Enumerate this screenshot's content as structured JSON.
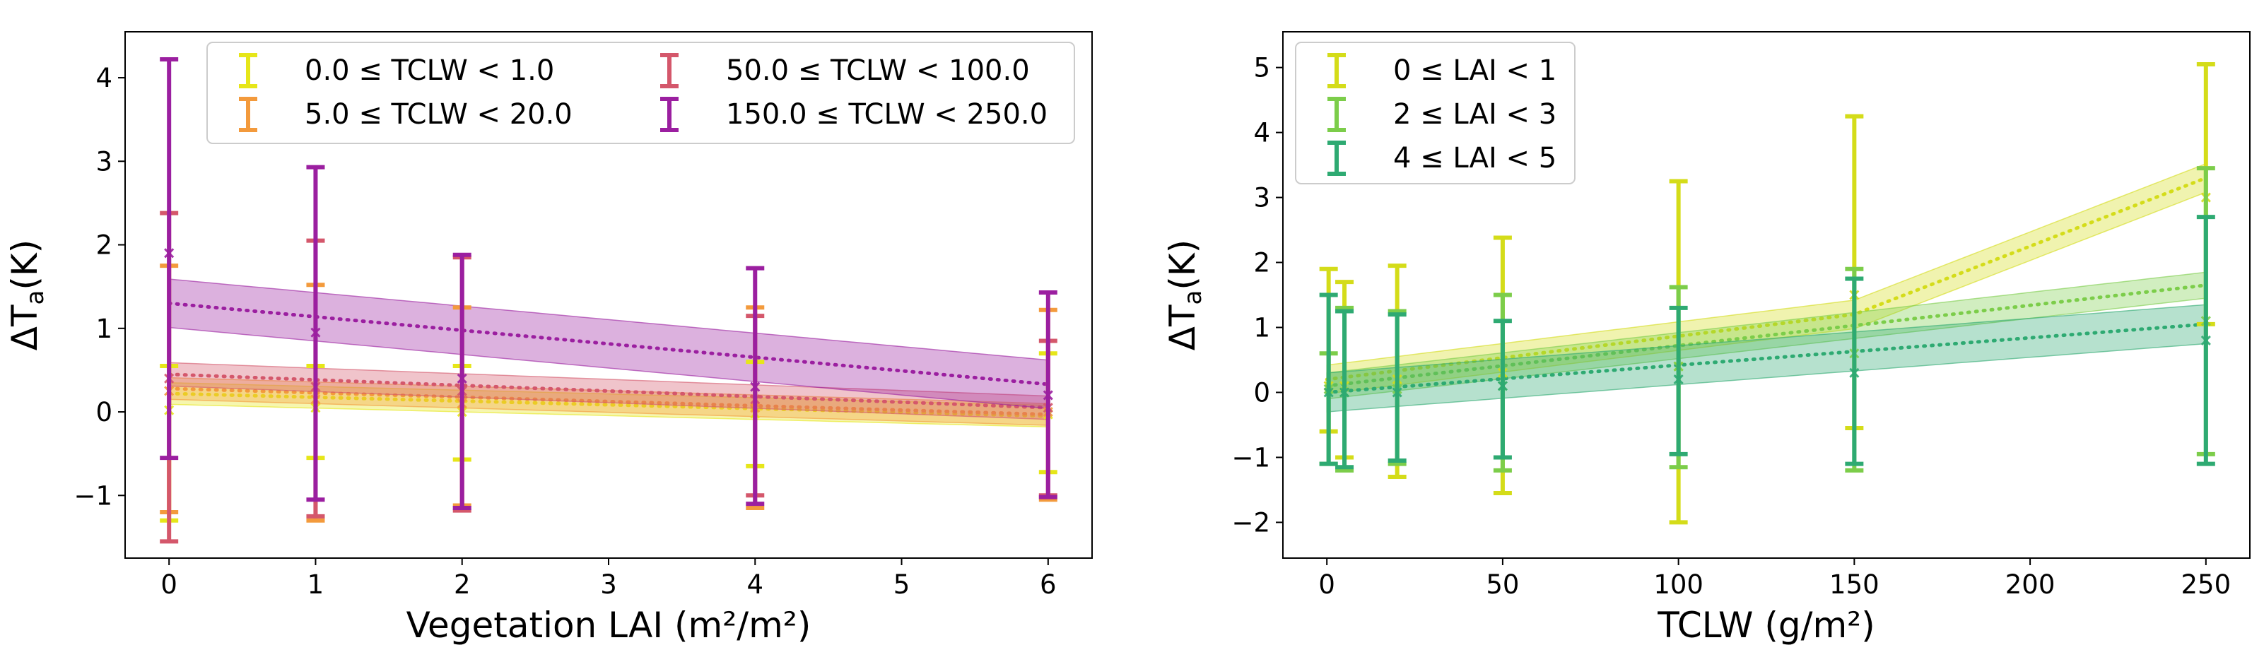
{
  "chart_data": [
    {
      "type": "line",
      "xlabel": "Vegetation LAI (m²/m²)",
      "ylabel_main": "ΔT",
      "ylabel_sub": "a",
      "ylabel_unit": "(K)",
      "xlim": [
        -0.3,
        6.3
      ],
      "ylim": [
        -1.75,
        4.55
      ],
      "xticks": [
        0,
        1,
        2,
        3,
        4,
        5,
        6
      ],
      "xtick_labels": [
        "0",
        "1",
        "2",
        "3",
        "4",
        "5",
        "6"
      ],
      "yticks": [
        -1,
        0,
        1,
        2,
        3,
        4
      ],
      "ytick_labels": [
        "−1",
        "0",
        "1",
        "2",
        "3",
        "4"
      ],
      "legend_position": "top, two columns",
      "series": [
        {
          "name": "0.0 ≤ TCLW < 1.0",
          "color": "#e6e619",
          "fit_x": [
            0,
            6
          ],
          "fit_y": [
            0.22,
            -0.05
          ],
          "band_half_width": 0.13,
          "points": [
            {
              "x": 0,
              "y": 0.02,
              "err_low": -1.3,
              "err_high": 0.55
            },
            {
              "x": 1,
              "y": 0.05,
              "err_low": -0.55,
              "err_high": 0.55
            },
            {
              "x": 2,
              "y": 0.0,
              "err_low": -0.57,
              "err_high": 0.55
            },
            {
              "x": 4,
              "y": -0.02,
              "err_low": -0.65,
              "err_high": 0.6
            },
            {
              "x": 6,
              "y": -0.03,
              "err_low": -0.72,
              "err_high": 0.7
            }
          ]
        },
        {
          "name": "5.0 ≤ TCLW < 20.0",
          "color": "#f39a3c",
          "fit_x": [
            0,
            6
          ],
          "fit_y": [
            0.28,
            -0.03
          ],
          "band_half_width": 0.13,
          "points": [
            {
              "x": 0,
              "y": 0.25,
              "err_low": -1.2,
              "err_high": 1.75
            },
            {
              "x": 1,
              "y": 0.15,
              "err_low": -1.3,
              "err_high": 1.52
            },
            {
              "x": 2,
              "y": 0.1,
              "err_low": -1.12,
              "err_high": 1.25
            },
            {
              "x": 4,
              "y": 0.05,
              "err_low": -1.15,
              "err_high": 1.25
            },
            {
              "x": 6,
              "y": 0.0,
              "err_low": -1.05,
              "err_high": 1.22
            }
          ]
        },
        {
          "name": "50.0 ≤ TCLW < 100.0",
          "color": "#d4576b",
          "fit_x": [
            0,
            6
          ],
          "fit_y": [
            0.45,
            0.05
          ],
          "band_half_width": 0.14,
          "points": [
            {
              "x": 0,
              "y": 0.4,
              "err_low": -1.55,
              "err_high": 2.38
            },
            {
              "x": 1,
              "y": 0.3,
              "err_low": -1.25,
              "err_high": 2.05
            },
            {
              "x": 2,
              "y": 0.25,
              "err_low": -1.18,
              "err_high": 1.85
            },
            {
              "x": 4,
              "y": 0.15,
              "err_low": -1.0,
              "err_high": 1.15
            },
            {
              "x": 6,
              "y": 0.05,
              "err_low": -1.0,
              "err_high": 0.85
            }
          ]
        },
        {
          "name": "150.0 ≤ TCLW < 250.0",
          "color": "#9b1fa0",
          "fit_x": [
            0,
            6
          ],
          "fit_y": [
            1.3,
            0.33
          ],
          "band_half_width": 0.29,
          "points": [
            {
              "x": 0,
              "y": 1.9,
              "err_low": -0.55,
              "err_high": 4.22
            },
            {
              "x": 1,
              "y": 0.95,
              "err_low": -1.05,
              "err_high": 2.93
            },
            {
              "x": 2,
              "y": 0.4,
              "err_low": -1.15,
              "err_high": 1.88
            },
            {
              "x": 4,
              "y": 0.3,
              "err_low": -1.1,
              "err_high": 1.72
            },
            {
              "x": 6,
              "y": 0.2,
              "err_low": -1.02,
              "err_high": 1.43
            }
          ]
        }
      ]
    },
    {
      "type": "line",
      "xlabel": "TCLW (g/m²)",
      "ylabel_main": "ΔT",
      "ylabel_sub": "a",
      "ylabel_unit": "(K)",
      "xlim": [
        -12.5,
        262.5
      ],
      "ylim": [
        -2.55,
        5.55
      ],
      "xticks": [
        0,
        50,
        100,
        150,
        200,
        250
      ],
      "xtick_labels": [
        "0",
        "50",
        "100",
        "150",
        "200",
        "250"
      ],
      "yticks": [
        -2,
        -1,
        0,
        1,
        2,
        3,
        4,
        5
      ],
      "ytick_labels": [
        "−2",
        "−1",
        "0",
        "1",
        "2",
        "3",
        "4",
        "5"
      ],
      "legend_position": "top-left",
      "series": [
        {
          "name": "0 ≤ LAI < 1",
          "color": "#d4dc19",
          "fit_x": [
            0,
            150,
            250
          ],
          "fit_y": [
            0.2,
            1.2,
            3.3
          ],
          "band_half_width": 0.22,
          "points": [
            {
              "x": 0.5,
              "y": 0.1,
              "err_low": -0.6,
              "err_high": 1.9
            },
            {
              "x": 5,
              "y": 0.1,
              "err_low": -1.0,
              "err_high": 1.7
            },
            {
              "x": 20,
              "y": 0.2,
              "err_low": -1.3,
              "err_high": 1.95
            },
            {
              "x": 50,
              "y": 0.3,
              "err_low": -1.55,
              "err_high": 2.38
            },
            {
              "x": 100,
              "y": 0.4,
              "err_low": -2.0,
              "err_high": 3.25
            },
            {
              "x": 150,
              "y": 1.5,
              "err_low": -0.55,
              "err_high": 4.25
            },
            {
              "x": 250,
              "y": 3.0,
              "err_low": 1.05,
              "err_high": 5.05
            }
          ]
        },
        {
          "name": "2 ≤ LAI < 3",
          "color": "#7ccd4a",
          "fit_x": [
            0,
            250
          ],
          "fit_y": [
            0.1,
            1.65
          ],
          "band_half_width": 0.2,
          "points": [
            {
              "x": 0.5,
              "y": 0.05,
              "err_low": -1.1,
              "err_high": 0.6
            },
            {
              "x": 5,
              "y": 0.0,
              "err_low": -1.2,
              "err_high": 1.3
            },
            {
              "x": 20,
              "y": 0.05,
              "err_low": -1.1,
              "err_high": 1.25
            },
            {
              "x": 50,
              "y": 0.1,
              "err_low": -1.2,
              "err_high": 1.5
            },
            {
              "x": 100,
              "y": 0.4,
              "err_low": -1.15,
              "err_high": 1.62
            },
            {
              "x": 150,
              "y": 0.6,
              "err_low": -1.2,
              "err_high": 1.9
            },
            {
              "x": 250,
              "y": 1.1,
              "err_low": -0.95,
              "err_high": 3.45
            }
          ]
        },
        {
          "name": "4 ≤ LAI < 5",
          "color": "#2eaa72",
          "fit_x": [
            0,
            250
          ],
          "fit_y": [
            0.0,
            1.05
          ],
          "band_half_width": 0.3,
          "points": [
            {
              "x": 0.5,
              "y": 0.0,
              "err_low": -1.1,
              "err_high": 1.5
            },
            {
              "x": 5,
              "y": 0.0,
              "err_low": -1.15,
              "err_high": 1.25
            },
            {
              "x": 20,
              "y": 0.0,
              "err_low": -1.05,
              "err_high": 1.2
            },
            {
              "x": 50,
              "y": 0.1,
              "err_low": -1.0,
              "err_high": 1.1
            },
            {
              "x": 100,
              "y": 0.2,
              "err_low": -0.95,
              "err_high": 1.3
            },
            {
              "x": 150,
              "y": 0.3,
              "err_low": -1.1,
              "err_high": 1.75
            },
            {
              "x": 250,
              "y": 0.8,
              "err_low": -1.1,
              "err_high": 2.7
            }
          ]
        }
      ]
    }
  ]
}
